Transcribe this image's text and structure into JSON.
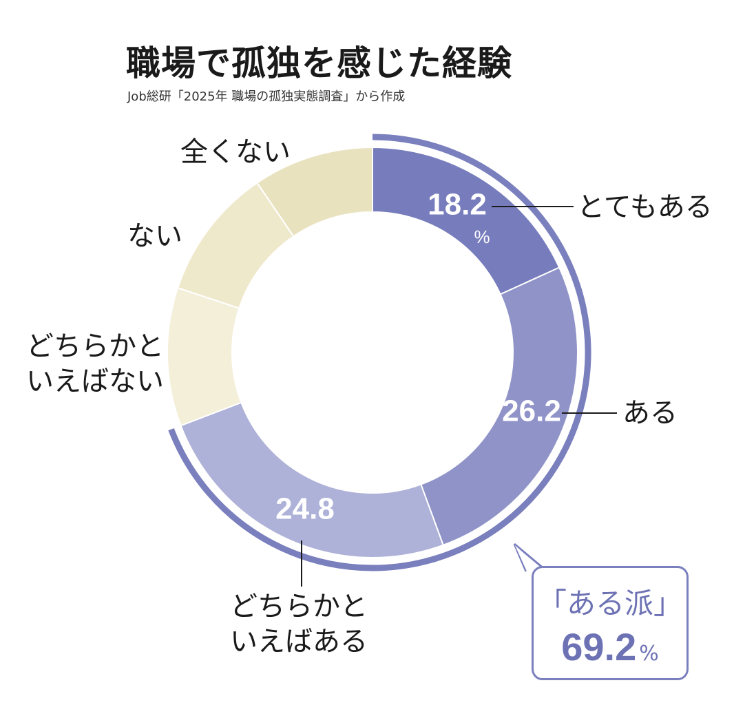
{
  "title": "職場で孤独を感じた経験",
  "source": "Job総研「2025年 職場の孤独実態調査」から作成",
  "chart_data": {
    "type": "pie",
    "style": "donut",
    "direction": "clockwise-from-top",
    "slices": [
      {
        "label": "とてもある",
        "value": 18.2,
        "value_text": "18.2",
        "unit": "%",
        "color": "#767cbc"
      },
      {
        "label": "ある",
        "value": 26.2,
        "value_text": "26.2",
        "unit": "",
        "color": "#8f93c8"
      },
      {
        "label_lines": [
          "どちらかと",
          "いえばある"
        ],
        "value": 24.8,
        "value_text": "24.8",
        "unit": "",
        "color": "#aeb1d8"
      },
      {
        "label_lines": [
          "どちらかと",
          "いえばない"
        ],
        "value": 10.9,
        "color": "#f3efd9"
      },
      {
        "label": "ない",
        "value": 10.4,
        "color": "#efe9cc"
      },
      {
        "label": "全くない",
        "value": 9.5,
        "color": "#e9e2bf"
      }
    ],
    "group": {
      "label": "「ある派」",
      "value_text": "69.2",
      "unit": "%",
      "color": "#7a7fbd"
    }
  }
}
